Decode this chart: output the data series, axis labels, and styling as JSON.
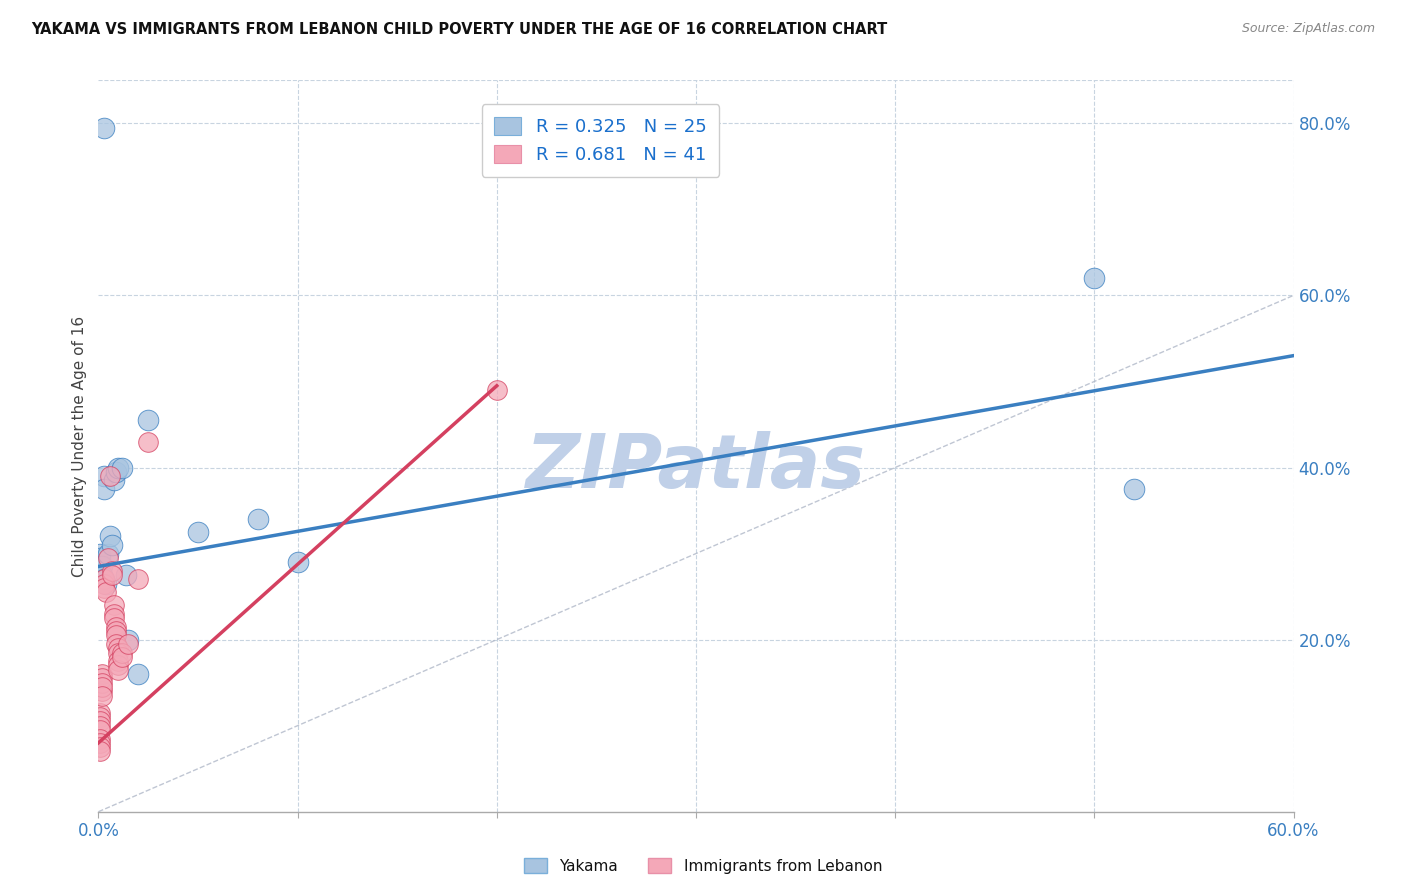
{
  "title": "YAKAMA VS IMMIGRANTS FROM LEBANON CHILD POVERTY UNDER THE AGE OF 16 CORRELATION CHART",
  "source": "Source: ZipAtlas.com",
  "ylabel": "Child Poverty Under the Age of 16",
  "xlim": [
    0.0,
    0.6
  ],
  "ylim": [
    0.0,
    0.85
  ],
  "xticks": [
    0.0,
    0.1,
    0.2,
    0.3,
    0.4,
    0.5,
    0.6
  ],
  "yticks": [
    0.2,
    0.4,
    0.6,
    0.8
  ],
  "yakama_R": 0.325,
  "yakama_N": 25,
  "lebanon_R": 0.681,
  "lebanon_N": 41,
  "yakama_color": "#a8c4e0",
  "lebanon_color": "#f4a8b8",
  "trendline_yakama_color": "#3a7fc1",
  "trendline_lebanon_color": "#d44060",
  "diagonal_color": "#b0b8c8",
  "watermark": "ZIPatlas",
  "watermark_color": "#c0d0e8",
  "yakama_x": [
    0.003,
    0.025,
    0.003,
    0.003,
    0.001,
    0.001,
    0.002,
    0.002,
    0.003,
    0.004,
    0.005,
    0.006,
    0.007,
    0.008,
    0.009,
    0.01,
    0.012,
    0.014,
    0.08,
    0.1,
    0.5,
    0.52,
    0.015,
    0.02,
    0.05
  ],
  "yakama_y": [
    0.795,
    0.455,
    0.39,
    0.375,
    0.3,
    0.295,
    0.285,
    0.275,
    0.27,
    0.265,
    0.3,
    0.32,
    0.31,
    0.385,
    0.395,
    0.4,
    0.4,
    0.275,
    0.34,
    0.29,
    0.62,
    0.375,
    0.2,
    0.16,
    0.325
  ],
  "lebanon_x": [
    0.001,
    0.001,
    0.001,
    0.001,
    0.001,
    0.001,
    0.001,
    0.001,
    0.001,
    0.002,
    0.002,
    0.002,
    0.002,
    0.002,
    0.002,
    0.003,
    0.003,
    0.003,
    0.004,
    0.005,
    0.006,
    0.007,
    0.007,
    0.008,
    0.008,
    0.008,
    0.009,
    0.009,
    0.009,
    0.009,
    0.01,
    0.01,
    0.01,
    0.01,
    0.01,
    0.012,
    0.012,
    0.015,
    0.02,
    0.025,
    0.2
  ],
  "lebanon_y": [
    0.115,
    0.11,
    0.105,
    0.1,
    0.095,
    0.085,
    0.08,
    0.075,
    0.07,
    0.14,
    0.16,
    0.155,
    0.15,
    0.145,
    0.135,
    0.27,
    0.265,
    0.26,
    0.255,
    0.295,
    0.39,
    0.28,
    0.275,
    0.24,
    0.23,
    0.225,
    0.215,
    0.21,
    0.205,
    0.195,
    0.19,
    0.185,
    0.175,
    0.17,
    0.165,
    0.185,
    0.18,
    0.195,
    0.27,
    0.43,
    0.49
  ],
  "trendline_yakama_x0": 0.0,
  "trendline_yakama_x1": 0.6,
  "trendline_yakama_y0": 0.285,
  "trendline_yakama_y1": 0.53,
  "trendline_lebanon_x0": 0.0,
  "trendline_lebanon_x1": 0.2,
  "trendline_lebanon_y0": 0.08,
  "trendline_lebanon_y1": 0.495
}
